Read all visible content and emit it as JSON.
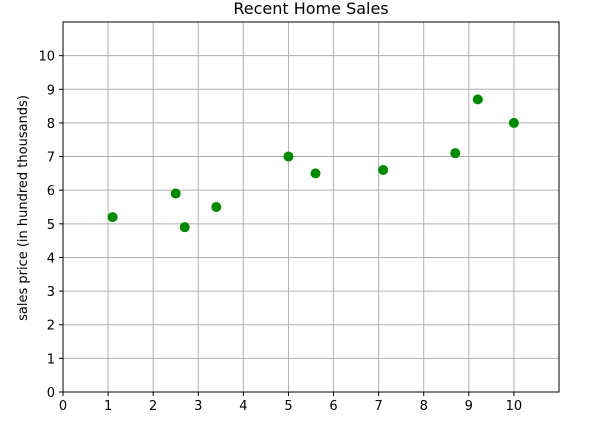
{
  "chart_data": {
    "type": "scatter",
    "title": "Recent Home Sales",
    "xlabel": "",
    "ylabel": "sales price (in hundred thousands)",
    "xlim": [
      0,
      11
    ],
    "ylim": [
      0,
      11
    ],
    "xticks": [
      0,
      1,
      2,
      3,
      4,
      5,
      6,
      7,
      8,
      9,
      10
    ],
    "yticks": [
      0,
      1,
      2,
      3,
      4,
      5,
      6,
      7,
      8,
      9,
      10
    ],
    "grid": true,
    "marker_color": "#008a00",
    "points": [
      {
        "x": 1.1,
        "y": 5.2
      },
      {
        "x": 2.5,
        "y": 5.9
      },
      {
        "x": 2.7,
        "y": 4.9
      },
      {
        "x": 3.4,
        "y": 5.5
      },
      {
        "x": 5.0,
        "y": 7.0
      },
      {
        "x": 5.6,
        "y": 6.5
      },
      {
        "x": 7.1,
        "y": 6.6
      },
      {
        "x": 8.7,
        "y": 7.1
      },
      {
        "x": 9.2,
        "y": 8.7
      },
      {
        "x": 10.0,
        "y": 8.0
      }
    ]
  }
}
